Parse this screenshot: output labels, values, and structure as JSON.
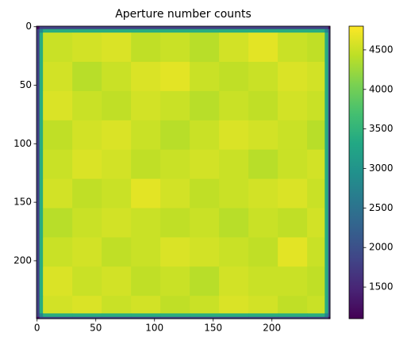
{
  "chart_data": {
    "type": "heatmap",
    "title": "Aperture number counts",
    "x_edges": [
      -0.5,
      2,
      5,
      30,
      55,
      80,
      105,
      130,
      155,
      180,
      205,
      230,
      245,
      248,
      249.5
    ],
    "y_edges": [
      -0.5,
      2,
      5,
      30,
      55,
      80,
      105,
      130,
      155,
      180,
      205,
      230,
      245,
      248,
      249.5
    ],
    "z": [
      [
        1200,
        1800,
        1800,
        1800,
        1800,
        1800,
        1800,
        1800,
        1800,
        1800,
        1800,
        1800,
        1800,
        1200
      ],
      [
        1800,
        2800,
        3400,
        3400,
        3400,
        3400,
        3400,
        3400,
        3400,
        3400,
        3400,
        3400,
        2800,
        1800
      ],
      [
        1800,
        3400,
        4500,
        4550,
        4600,
        4450,
        4500,
        4400,
        4550,
        4650,
        4500,
        4450,
        3400,
        1800
      ],
      [
        1800,
        3400,
        4550,
        4400,
        4500,
        4600,
        4650,
        4500,
        4450,
        4500,
        4600,
        4550,
        3400,
        1800
      ],
      [
        1800,
        3400,
        4600,
        4500,
        4450,
        4550,
        4500,
        4400,
        4500,
        4450,
        4550,
        4500,
        3400,
        1800
      ],
      [
        1800,
        3400,
        4450,
        4550,
        4600,
        4500,
        4400,
        4500,
        4600,
        4550,
        4500,
        4400,
        3400,
        1800
      ],
      [
        1800,
        3400,
        4500,
        4600,
        4550,
        4450,
        4500,
        4550,
        4500,
        4400,
        4500,
        4550,
        3400,
        1800
      ],
      [
        1800,
        3400,
        4550,
        4450,
        4500,
        4650,
        4550,
        4450,
        4500,
        4550,
        4600,
        4500,
        3400,
        1800
      ],
      [
        1800,
        3400,
        4400,
        4500,
        4550,
        4500,
        4450,
        4500,
        4400,
        4500,
        4450,
        4550,
        3400,
        1800
      ],
      [
        1800,
        3400,
        4500,
        4550,
        4450,
        4500,
        4600,
        4550,
        4500,
        4450,
        4650,
        4500,
        3400,
        1800
      ],
      [
        1800,
        3400,
        4600,
        4500,
        4550,
        4450,
        4500,
        4400,
        4550,
        4500,
        4500,
        4450,
        3400,
        1800
      ],
      [
        1800,
        3400,
        4550,
        4600,
        4500,
        4550,
        4450,
        4500,
        4600,
        4550,
        4450,
        4500,
        3400,
        1800
      ],
      [
        1800,
        2800,
        3400,
        3400,
        3400,
        3400,
        3400,
        3400,
        3400,
        3400,
        3400,
        3400,
        2800,
        1800
      ],
      [
        1200,
        1800,
        1800,
        1800,
        1800,
        1800,
        1800,
        1800,
        1800,
        1800,
        1800,
        1800,
        1800,
        1200
      ]
    ],
    "xlim": [
      -0.5,
      249.5
    ],
    "ylim": [
      249.5,
      -0.5
    ],
    "xticks": [
      0,
      50,
      100,
      150,
      200
    ],
    "yticks": [
      0,
      50,
      100,
      150,
      200
    ],
    "colormap": "viridis",
    "clim": [
      1100,
      4800
    ],
    "colorbar_ticks": [
      1500,
      2000,
      2500,
      3000,
      3500,
      4000,
      4500
    ]
  }
}
